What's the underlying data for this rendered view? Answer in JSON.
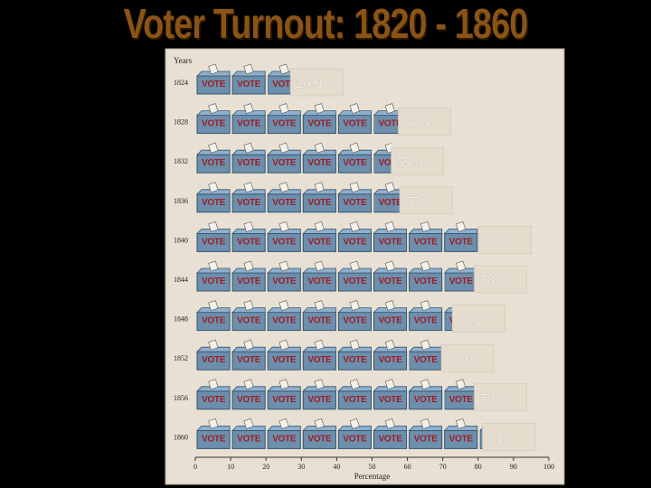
{
  "title": "Voter Turnout:  1820 - 1860",
  "chart_data": {
    "type": "bar",
    "title": "Voter Turnout:  1820 - 1860",
    "ylabel": "Years",
    "xlabel": "Percentage",
    "categories": [
      "1824",
      "1828",
      "1832",
      "1836",
      "1840",
      "1844",
      "1848",
      "1852",
      "1856",
      "1860"
    ],
    "values": [
      26.9,
      57.4,
      55.4,
      57.8,
      80.2,
      78.9,
      72.7,
      69.6,
      78.9,
      81.2
    ],
    "value_labels": [
      "26.9",
      "57.4",
      "55.4",
      "57.8",
      "80.2",
      "78.9",
      "72.7",
      "69.6",
      "78.9",
      "81.2"
    ],
    "xlim": [
      0,
      100
    ],
    "xticks": [
      0,
      10,
      20,
      30,
      40,
      50,
      60,
      70,
      80,
      90,
      100
    ],
    "icon_text": "VOTE",
    "icon_unit": 10,
    "grid": false,
    "legend": "none",
    "colors": {
      "background": "#000000",
      "plot_background": "#e8e0d2",
      "title": "#8a5416",
      "box": "#6d8fae",
      "box_dark": "#35546f",
      "vote_text": "#9c1e24",
      "label_box": "#e6dccd"
    }
  }
}
